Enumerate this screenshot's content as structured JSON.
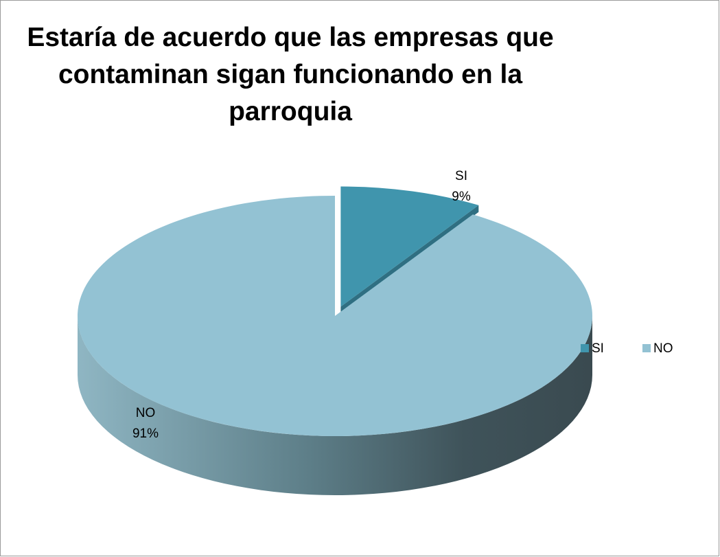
{
  "chart_data": {
    "type": "pie",
    "title": "Estaría de acuerdo que las empresas que contaminan sigan funcionando en la parroquia",
    "categories": [
      "SI",
      "NO"
    ],
    "values": [
      9,
      91
    ],
    "value_labels": [
      "9%",
      "91%"
    ],
    "colors": [
      "#4095ad",
      "#93c2d3"
    ],
    "legend": "right"
  }
}
